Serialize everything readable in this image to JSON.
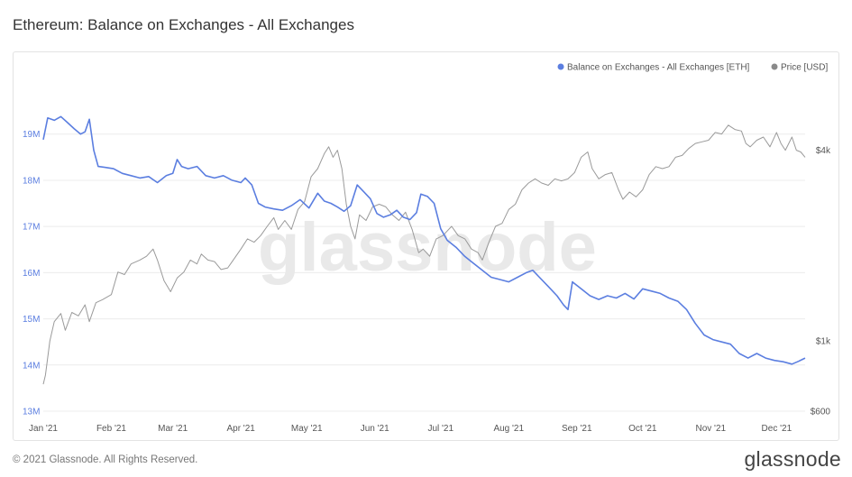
{
  "page": {
    "title": "Ethereum: Balance on Exchanges - All Exchanges",
    "copyright": "© 2021 Glassnode. All Rights Reserved.",
    "brand": "glassnode",
    "watermark": "glassnode"
  },
  "colors": {
    "balance_series": "#5b7ee0",
    "price_series": "#9a9a9a",
    "grid": "#ececec",
    "left_axis_text": "#5b7ee0",
    "right_axis_text": "#555555"
  },
  "chart_data": {
    "type": "line",
    "title": "Ethereum: Balance on Exchanges - All Exchanges",
    "legend": {
      "placement": "top-right",
      "entries": [
        "Balance on Exchanges - All Exchanges [ETH]",
        "Price [USD]"
      ]
    },
    "grid": true,
    "x_axis": {
      "type": "date",
      "ticks": [
        "Jan '21",
        "Feb '21",
        "Mar '21",
        "Apr '21",
        "May '21",
        "Jun '21",
        "Jul '21",
        "Aug '21",
        "Sep '21",
        "Oct '21",
        "Nov '21",
        "Dec '21"
      ],
      "range": [
        "2021-01-01",
        "2021-12-14"
      ]
    },
    "y_left": {
      "label": "",
      "ticks": [
        "13M",
        "14M",
        "15M",
        "16M",
        "17M",
        "18M",
        "19M"
      ],
      "tick_values": [
        13000000,
        14000000,
        15000000,
        16000000,
        17000000,
        18000000,
        19000000
      ],
      "range": [
        13000000,
        19600000
      ]
    },
    "y_right": {
      "scale": "log",
      "ticks": [
        "$600",
        "$1k",
        "$4k"
      ],
      "tick_values": [
        600,
        1000,
        4000
      ],
      "range": [
        600,
        5500
      ]
    },
    "series": [
      {
        "name": "Balance on Exchanges - All Exchanges [ETH]",
        "axis": "left",
        "points": [
          [
            "2021-01-01",
            18880000
          ],
          [
            "2021-01-03",
            19350000
          ],
          [
            "2021-01-06",
            19300000
          ],
          [
            "2021-01-09",
            19380000
          ],
          [
            "2021-01-12",
            19250000
          ],
          [
            "2021-01-15",
            19120000
          ],
          [
            "2021-01-18",
            19000000
          ],
          [
            "2021-01-20",
            19050000
          ],
          [
            "2021-01-22",
            19320000
          ],
          [
            "2021-01-24",
            18650000
          ],
          [
            "2021-01-26",
            18300000
          ],
          [
            "2021-01-29",
            18280000
          ],
          [
            "2021-02-02",
            18250000
          ],
          [
            "2021-02-06",
            18150000
          ],
          [
            "2021-02-10",
            18100000
          ],
          [
            "2021-02-14",
            18050000
          ],
          [
            "2021-02-18",
            18080000
          ],
          [
            "2021-02-22",
            17950000
          ],
          [
            "2021-02-26",
            18100000
          ],
          [
            "2021-03-01",
            18150000
          ],
          [
            "2021-03-03",
            18450000
          ],
          [
            "2021-03-05",
            18300000
          ],
          [
            "2021-03-08",
            18250000
          ],
          [
            "2021-03-12",
            18300000
          ],
          [
            "2021-03-16",
            18100000
          ],
          [
            "2021-03-20",
            18050000
          ],
          [
            "2021-03-24",
            18100000
          ],
          [
            "2021-03-28",
            18000000
          ],
          [
            "2021-04-01",
            17950000
          ],
          [
            "2021-04-03",
            18050000
          ],
          [
            "2021-04-06",
            17900000
          ],
          [
            "2021-04-09",
            17500000
          ],
          [
            "2021-04-12",
            17420000
          ],
          [
            "2021-04-16",
            17380000
          ],
          [
            "2021-04-20",
            17350000
          ],
          [
            "2021-04-24",
            17450000
          ],
          [
            "2021-04-28",
            17580000
          ],
          [
            "2021-05-02",
            17400000
          ],
          [
            "2021-05-06",
            17720000
          ],
          [
            "2021-05-09",
            17550000
          ],
          [
            "2021-05-12",
            17500000
          ],
          [
            "2021-05-15",
            17420000
          ],
          [
            "2021-05-18",
            17330000
          ],
          [
            "2021-05-21",
            17450000
          ],
          [
            "2021-05-24",
            17900000
          ],
          [
            "2021-05-27",
            17750000
          ],
          [
            "2021-05-30",
            17600000
          ],
          [
            "2021-06-02",
            17280000
          ],
          [
            "2021-06-05",
            17200000
          ],
          [
            "2021-06-08",
            17250000
          ],
          [
            "2021-06-11",
            17350000
          ],
          [
            "2021-06-14",
            17200000
          ],
          [
            "2021-06-17",
            17150000
          ],
          [
            "2021-06-20",
            17300000
          ],
          [
            "2021-06-22",
            17700000
          ],
          [
            "2021-06-25",
            17650000
          ],
          [
            "2021-06-28",
            17500000
          ],
          [
            "2021-07-01",
            16950000
          ],
          [
            "2021-07-04",
            16700000
          ],
          [
            "2021-07-08",
            16550000
          ],
          [
            "2021-07-12",
            16350000
          ],
          [
            "2021-07-16",
            16200000
          ],
          [
            "2021-07-20",
            16050000
          ],
          [
            "2021-07-24",
            15900000
          ],
          [
            "2021-07-28",
            15850000
          ],
          [
            "2021-08-01",
            15800000
          ],
          [
            "2021-08-05",
            15900000
          ],
          [
            "2021-08-09",
            16000000
          ],
          [
            "2021-08-12",
            16050000
          ],
          [
            "2021-08-15",
            15900000
          ],
          [
            "2021-08-19",
            15700000
          ],
          [
            "2021-08-23",
            15500000
          ],
          [
            "2021-08-26",
            15300000
          ],
          [
            "2021-08-28",
            15200000
          ],
          [
            "2021-08-30",
            15800000
          ],
          [
            "2021-09-03",
            15650000
          ],
          [
            "2021-09-07",
            15500000
          ],
          [
            "2021-09-11",
            15420000
          ],
          [
            "2021-09-15",
            15500000
          ],
          [
            "2021-09-19",
            15450000
          ],
          [
            "2021-09-23",
            15550000
          ],
          [
            "2021-09-27",
            15430000
          ],
          [
            "2021-10-01",
            15650000
          ],
          [
            "2021-10-05",
            15600000
          ],
          [
            "2021-10-09",
            15550000
          ],
          [
            "2021-10-13",
            15450000
          ],
          [
            "2021-10-17",
            15380000
          ],
          [
            "2021-10-21",
            15200000
          ],
          [
            "2021-10-25",
            14900000
          ],
          [
            "2021-10-29",
            14650000
          ],
          [
            "2021-11-02",
            14550000
          ],
          [
            "2021-11-06",
            14500000
          ],
          [
            "2021-11-10",
            14450000
          ],
          [
            "2021-11-14",
            14250000
          ],
          [
            "2021-11-18",
            14150000
          ],
          [
            "2021-11-22",
            14250000
          ],
          [
            "2021-11-26",
            14150000
          ],
          [
            "2021-11-30",
            14100000
          ],
          [
            "2021-12-04",
            14070000
          ],
          [
            "2021-12-08",
            14020000
          ],
          [
            "2021-12-11",
            14080000
          ],
          [
            "2021-12-14",
            14150000
          ]
        ]
      },
      {
        "name": "Price [USD]",
        "axis": "right",
        "points": [
          [
            "2021-01-01",
            730
          ],
          [
            "2021-01-02",
            780
          ],
          [
            "2021-01-04",
            1000
          ],
          [
            "2021-01-06",
            1150
          ],
          [
            "2021-01-09",
            1220
          ],
          [
            "2021-01-11",
            1080
          ],
          [
            "2021-01-14",
            1230
          ],
          [
            "2021-01-17",
            1200
          ],
          [
            "2021-01-20",
            1300
          ],
          [
            "2021-01-22",
            1150
          ],
          [
            "2021-01-25",
            1320
          ],
          [
            "2021-01-28",
            1350
          ],
          [
            "2021-02-01",
            1400
          ],
          [
            "2021-02-04",
            1650
          ],
          [
            "2021-02-07",
            1620
          ],
          [
            "2021-02-10",
            1750
          ],
          [
            "2021-02-14",
            1800
          ],
          [
            "2021-02-17",
            1850
          ],
          [
            "2021-02-20",
            1950
          ],
          [
            "2021-02-22",
            1800
          ],
          [
            "2021-02-25",
            1550
          ],
          [
            "2021-02-28",
            1430
          ],
          [
            "2021-03-03",
            1580
          ],
          [
            "2021-03-06",
            1650
          ],
          [
            "2021-03-09",
            1800
          ],
          [
            "2021-03-12",
            1750
          ],
          [
            "2021-03-14",
            1880
          ],
          [
            "2021-03-17",
            1800
          ],
          [
            "2021-03-20",
            1780
          ],
          [
            "2021-03-23",
            1680
          ],
          [
            "2021-03-26",
            1700
          ],
          [
            "2021-03-29",
            1820
          ],
          [
            "2021-04-01",
            1950
          ],
          [
            "2021-04-04",
            2100
          ],
          [
            "2021-04-07",
            2050
          ],
          [
            "2021-04-10",
            2150
          ],
          [
            "2021-04-13",
            2300
          ],
          [
            "2021-04-16",
            2450
          ],
          [
            "2021-04-18",
            2250
          ],
          [
            "2021-04-21",
            2400
          ],
          [
            "2021-04-24",
            2250
          ],
          [
            "2021-04-27",
            2600
          ],
          [
            "2021-04-30",
            2750
          ],
          [
            "2021-05-03",
            3300
          ],
          [
            "2021-05-06",
            3500
          ],
          [
            "2021-05-09",
            3900
          ],
          [
            "2021-05-11",
            4100
          ],
          [
            "2021-05-13",
            3800
          ],
          [
            "2021-05-15",
            4000
          ],
          [
            "2021-05-17",
            3500
          ],
          [
            "2021-05-19",
            2700
          ],
          [
            "2021-05-21",
            2300
          ],
          [
            "2021-05-23",
            2100
          ],
          [
            "2021-05-25",
            2500
          ],
          [
            "2021-05-28",
            2400
          ],
          [
            "2021-05-31",
            2650
          ],
          [
            "2021-06-03",
            2700
          ],
          [
            "2021-06-06",
            2650
          ],
          [
            "2021-06-09",
            2500
          ],
          [
            "2021-06-12",
            2400
          ],
          [
            "2021-06-15",
            2550
          ],
          [
            "2021-06-18",
            2250
          ],
          [
            "2021-06-21",
            1900
          ],
          [
            "2021-06-23",
            1950
          ],
          [
            "2021-06-26",
            1850
          ],
          [
            "2021-06-29",
            2100
          ],
          [
            "2021-07-02",
            2150
          ],
          [
            "2021-07-06",
            2300
          ],
          [
            "2021-07-09",
            2150
          ],
          [
            "2021-07-12",
            2100
          ],
          [
            "2021-07-15",
            1950
          ],
          [
            "2021-07-18",
            1900
          ],
          [
            "2021-07-20",
            1800
          ],
          [
            "2021-07-23",
            2050
          ],
          [
            "2021-07-26",
            2300
          ],
          [
            "2021-07-29",
            2350
          ],
          [
            "2021-08-01",
            2600
          ],
          [
            "2021-08-04",
            2700
          ],
          [
            "2021-08-07",
            3000
          ],
          [
            "2021-08-10",
            3150
          ],
          [
            "2021-08-13",
            3250
          ],
          [
            "2021-08-16",
            3150
          ],
          [
            "2021-08-19",
            3100
          ],
          [
            "2021-08-22",
            3250
          ],
          [
            "2021-08-25",
            3200
          ],
          [
            "2021-08-28",
            3250
          ],
          [
            "2021-08-31",
            3400
          ],
          [
            "2021-09-03",
            3800
          ],
          [
            "2021-09-06",
            3950
          ],
          [
            "2021-09-08",
            3500
          ],
          [
            "2021-09-11",
            3250
          ],
          [
            "2021-09-14",
            3350
          ],
          [
            "2021-09-17",
            3400
          ],
          [
            "2021-09-20",
            3000
          ],
          [
            "2021-09-22",
            2800
          ],
          [
            "2021-09-25",
            2950
          ],
          [
            "2021-09-28",
            2850
          ],
          [
            "2021-10-01",
            3000
          ],
          [
            "2021-10-04",
            3350
          ],
          [
            "2021-10-07",
            3550
          ],
          [
            "2021-10-10",
            3500
          ],
          [
            "2021-10-13",
            3550
          ],
          [
            "2021-10-16",
            3800
          ],
          [
            "2021-10-19",
            3850
          ],
          [
            "2021-10-22",
            4050
          ],
          [
            "2021-10-25",
            4200
          ],
          [
            "2021-10-28",
            4250
          ],
          [
            "2021-10-31",
            4300
          ],
          [
            "2021-11-03",
            4550
          ],
          [
            "2021-11-06",
            4500
          ],
          [
            "2021-11-09",
            4800
          ],
          [
            "2021-11-12",
            4650
          ],
          [
            "2021-11-15",
            4600
          ],
          [
            "2021-11-17",
            4200
          ],
          [
            "2021-11-19",
            4100
          ],
          [
            "2021-11-22",
            4300
          ],
          [
            "2021-11-25",
            4400
          ],
          [
            "2021-11-28",
            4100
          ],
          [
            "2021-12-01",
            4550
          ],
          [
            "2021-12-03",
            4200
          ],
          [
            "2021-12-05",
            4000
          ],
          [
            "2021-12-08",
            4400
          ],
          [
            "2021-12-10",
            4000
          ],
          [
            "2021-12-12",
            3950
          ],
          [
            "2021-12-14",
            3800
          ]
        ]
      }
    ]
  }
}
